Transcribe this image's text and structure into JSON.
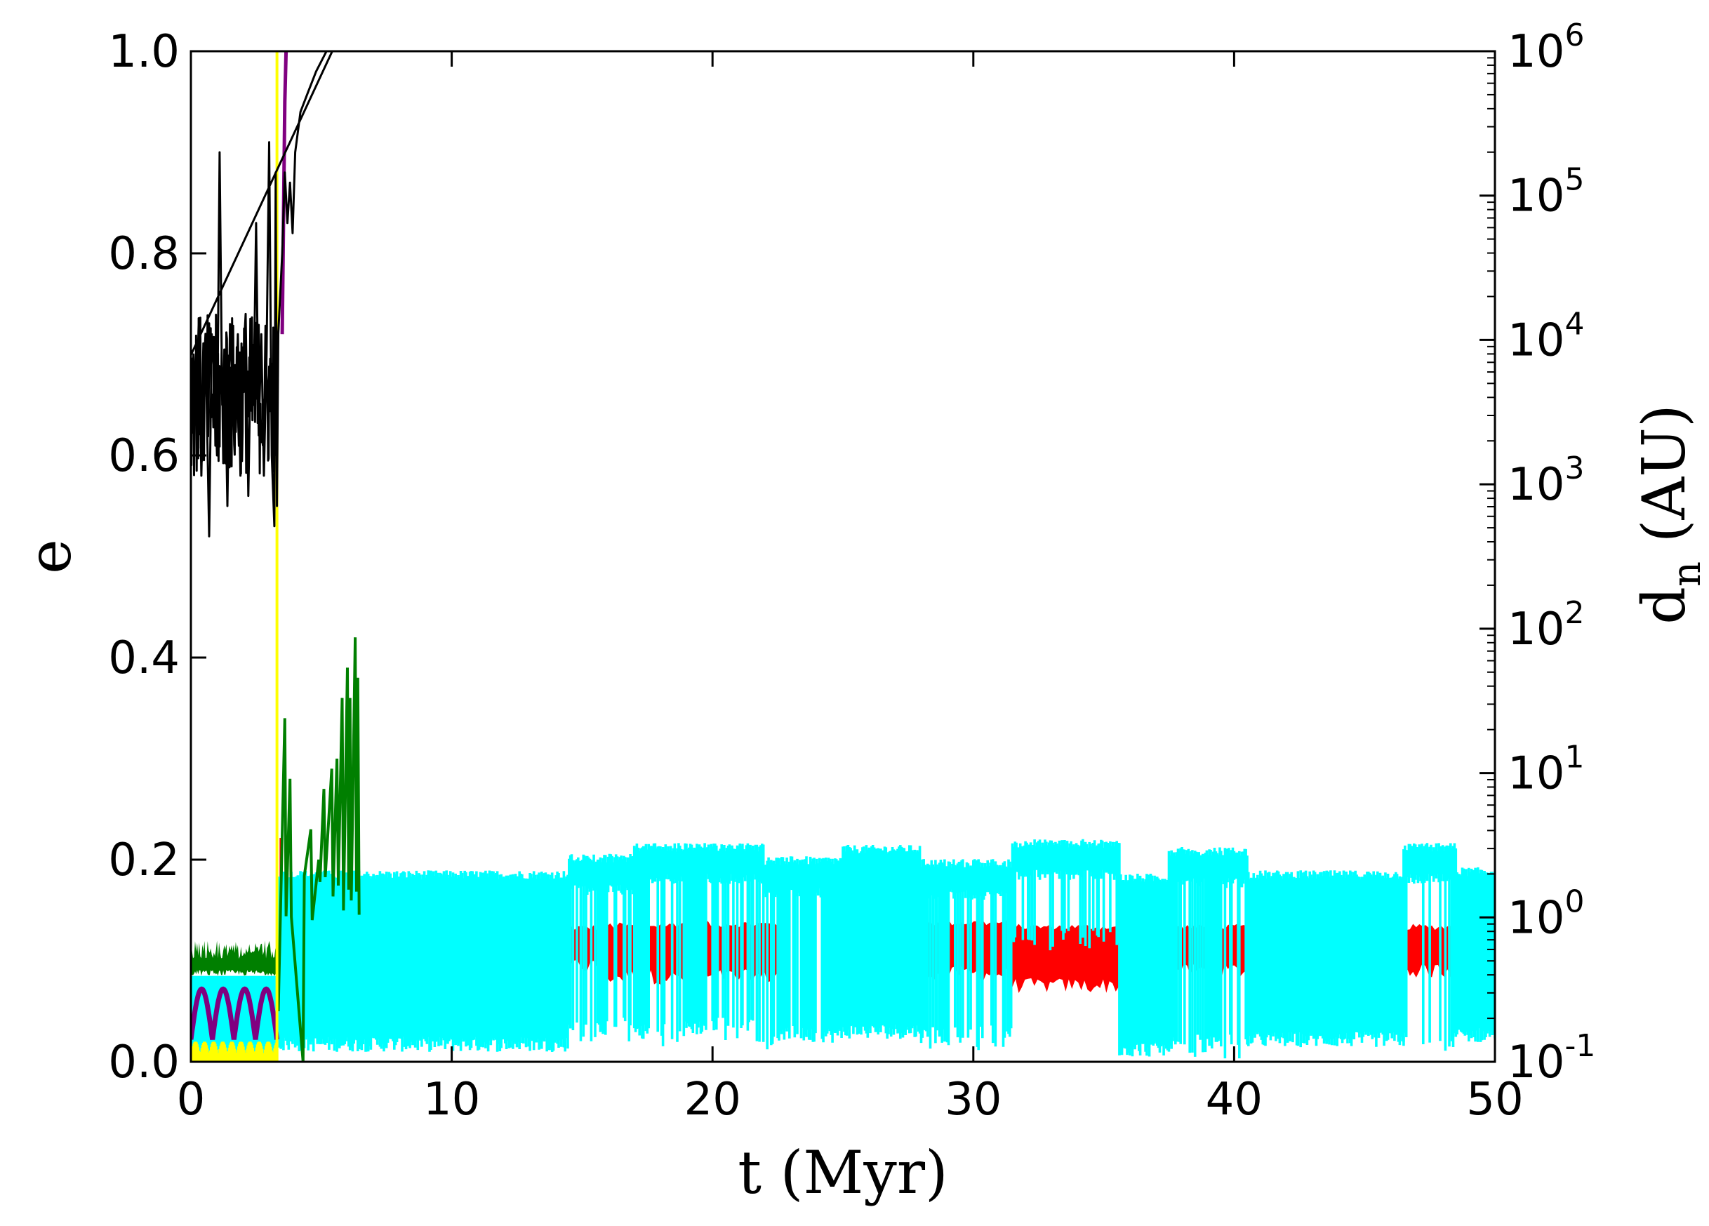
{
  "chart_data": {
    "type": "line",
    "xlabel": "t (Myr)",
    "ylabel": "e",
    "y2label": {
      "main": "d",
      "sub": "n",
      "rest": " (AU)"
    },
    "xlim": [
      0,
      50
    ],
    "ylim": [
      0,
      1.0
    ],
    "y2lim_log10": [
      -1,
      6
    ],
    "y2scale": "log",
    "xticks": [
      0,
      10,
      20,
      30,
      40,
      50
    ],
    "yticks": [
      0.0,
      0.2,
      0.4,
      0.6,
      0.8,
      1.0
    ],
    "ytick_labels": [
      "0.0",
      "0.2",
      "0.4",
      "0.6",
      "0.8",
      "1.0"
    ],
    "y2tick_exponents": [
      -1,
      0,
      1,
      2,
      3,
      4,
      5,
      6
    ],
    "y2tick_base": "10",
    "grid": false,
    "colors": {
      "black": "#000000",
      "green": "#007f00",
      "cyan": "#00ffff",
      "red": "#ff0000",
      "purple": "#800080",
      "yellow": "#ffff00",
      "blue": "#0000ff"
    },
    "series": [
      {
        "color_key": "black",
        "axis": "left",
        "style": "line",
        "points": [
          [
            0,
            0.62
          ],
          [
            0.1,
            0.7
          ],
          [
            0.2,
            0.64
          ],
          [
            0.3,
            0.73
          ],
          [
            0.4,
            0.58
          ],
          [
            0.5,
            0.71
          ],
          [
            0.6,
            0.66
          ],
          [
            0.7,
            0.52
          ],
          [
            0.8,
            0.72
          ],
          [
            0.9,
            0.68
          ],
          [
            1.0,
            0.6
          ],
          [
            1.1,
            0.9
          ],
          [
            1.2,
            0.65
          ],
          [
            1.3,
            0.7
          ],
          [
            1.4,
            0.55
          ],
          [
            1.5,
            0.73
          ],
          [
            1.6,
            0.67
          ],
          [
            1.7,
            0.63
          ],
          [
            1.8,
            0.72
          ],
          [
            1.9,
            0.58
          ],
          [
            2.0,
            0.69
          ],
          [
            2.1,
            0.74
          ],
          [
            2.2,
            0.56
          ],
          [
            2.3,
            0.71
          ],
          [
            2.4,
            0.65
          ],
          [
            2.5,
            0.83
          ],
          [
            2.6,
            0.62
          ],
          [
            2.7,
            0.72
          ],
          [
            2.8,
            0.58
          ],
          [
            2.9,
            0.7
          ],
          [
            3.0,
            0.91
          ],
          [
            3.1,
            0.6
          ],
          [
            3.2,
            0.53
          ],
          [
            3.25,
            0.88
          ],
          [
            3.3,
            0.55
          ],
          [
            3.35,
            0.72
          ],
          [
            3.5,
            0.8
          ],
          [
            3.6,
            0.88
          ],
          [
            3.7,
            0.83
          ],
          [
            3.8,
            0.87
          ],
          [
            3.9,
            0.82
          ],
          [
            4.0,
            0.9
          ],
          [
            4.2,
            0.94
          ],
          [
            4.5,
            0.96
          ],
          [
            4.8,
            0.98
          ],
          [
            5.2,
            1.0
          ],
          [
            5.6,
            1.01
          ]
        ]
      },
      {
        "color_key": "green",
        "axis": "left",
        "style": "band",
        "segments": [
          {
            "x": [
              0,
              3.3
            ],
            "low": 0.085,
            "high": 0.12
          }
        ],
        "spikes": [
          [
            3.6,
            0.34
          ],
          [
            3.8,
            0.28
          ],
          [
            4.3,
            0.0
          ],
          [
            4.6,
            0.23
          ],
          [
            4.9,
            0.2
          ],
          [
            5.1,
            0.27
          ],
          [
            5.4,
            0.29
          ],
          [
            5.6,
            0.3
          ],
          [
            5.8,
            0.36
          ],
          [
            6.0,
            0.39
          ],
          [
            6.1,
            0.36
          ],
          [
            6.3,
            0.42
          ],
          [
            6.4,
            0.38
          ]
        ]
      },
      {
        "color_key": "cyan",
        "axis": "right",
        "style": "band",
        "segments": [
          {
            "x": [
              0,
              3.3
            ],
            "low": 0.0,
            "high": 0.085,
            "units": "e"
          },
          {
            "x": [
              3.4,
              14.5
            ],
            "low": 0.13,
            "high": 2.0
          },
          {
            "x": [
              14.5,
              17.0
            ],
            "low": 0.17,
            "high": 2.6
          },
          {
            "x": [
              17.0,
              19.0
            ],
            "low": 0.16,
            "high": 3.1
          },
          {
            "x": [
              19.0,
              22.0
            ],
            "low": 0.17,
            "high": 3.1
          },
          {
            "x": [
              22.0,
              25.0
            ],
            "low": 0.15,
            "high": 2.5
          },
          {
            "x": [
              25.0,
              28.0
            ],
            "low": 0.16,
            "high": 3.0
          },
          {
            "x": [
              28.0,
              31.5
            ],
            "low": 0.15,
            "high": 2.4
          },
          {
            "x": [
              31.5,
              35.6
            ],
            "low": 0.7,
            "high": 3.3
          },
          {
            "x": [
              35.6,
              37.5
            ],
            "low": 0.12,
            "high": 1.9
          },
          {
            "x": [
              37.5,
              40.5
            ],
            "low": 0.13,
            "high": 2.9
          },
          {
            "x": [
              40.5,
              46.5
            ],
            "low": 0.14,
            "high": 2.0
          },
          {
            "x": [
              46.5,
              48.5
            ],
            "low": 0.14,
            "high": 3.1
          },
          {
            "x": [
              48.5,
              50.0
            ],
            "low": 0.15,
            "high": 2.1
          }
        ],
        "gaps": [
          [
            14.6,
            15.6
          ],
          [
            16.0,
            17.0
          ],
          [
            17.6,
            19.0
          ],
          [
            19.8,
            20.0
          ],
          [
            20.2,
            22.5
          ],
          [
            23.0,
            23.4
          ],
          [
            24.0,
            24.2
          ],
          [
            28.3,
            28.7
          ],
          [
            29.0,
            31.3
          ],
          [
            31.6,
            35.5
          ],
          [
            37.8,
            38.9
          ],
          [
            39.5,
            40.4
          ],
          [
            46.6,
            48.3
          ]
        ]
      },
      {
        "color_key": "red",
        "axis": "right",
        "style": "band",
        "segments": [
          {
            "x": [
              3.4,
              3.6
            ],
            "low": 1.0,
            "high": 3.5
          },
          {
            "x": [
              14.6,
              15.6
            ],
            "low": 0.45,
            "high": 0.85
          },
          {
            "x": [
              15.6,
              18.5
            ],
            "low": 0.38,
            "high": 0.88
          },
          {
            "x": [
              18.5,
              22.8
            ],
            "low": 0.38,
            "high": 0.9
          },
          {
            "x": [
              27.5,
              31.5
            ],
            "low": 0.4,
            "high": 0.92
          },
          {
            "x": [
              31.5,
              35.6
            ],
            "low": 0.33,
            "high": 0.86
          },
          {
            "x": [
              37.6,
              40.5
            ],
            "low": 0.42,
            "high": 0.86
          },
          {
            "x": [
              46.5,
              48.3
            ],
            "low": 0.42,
            "high": 0.86
          }
        ]
      },
      {
        "color_key": "purple",
        "axis": "left",
        "style": "oscillation",
        "x_range": [
          0,
          3.3
        ],
        "low": 0.022,
        "high": 0.072,
        "periods": 4,
        "spike": [
          [
            3.5,
            0.72
          ],
          [
            3.6,
            0.95
          ],
          [
            3.65,
            1.0
          ]
        ]
      },
      {
        "color_key": "yellow",
        "axis": "left",
        "style": "band",
        "segments": [
          {
            "x": [
              0,
              3.3
            ],
            "low": 0.0,
            "high": 0.02
          }
        ],
        "vertical": [
          3.3,
          0.0,
          1.0
        ]
      }
    ]
  }
}
